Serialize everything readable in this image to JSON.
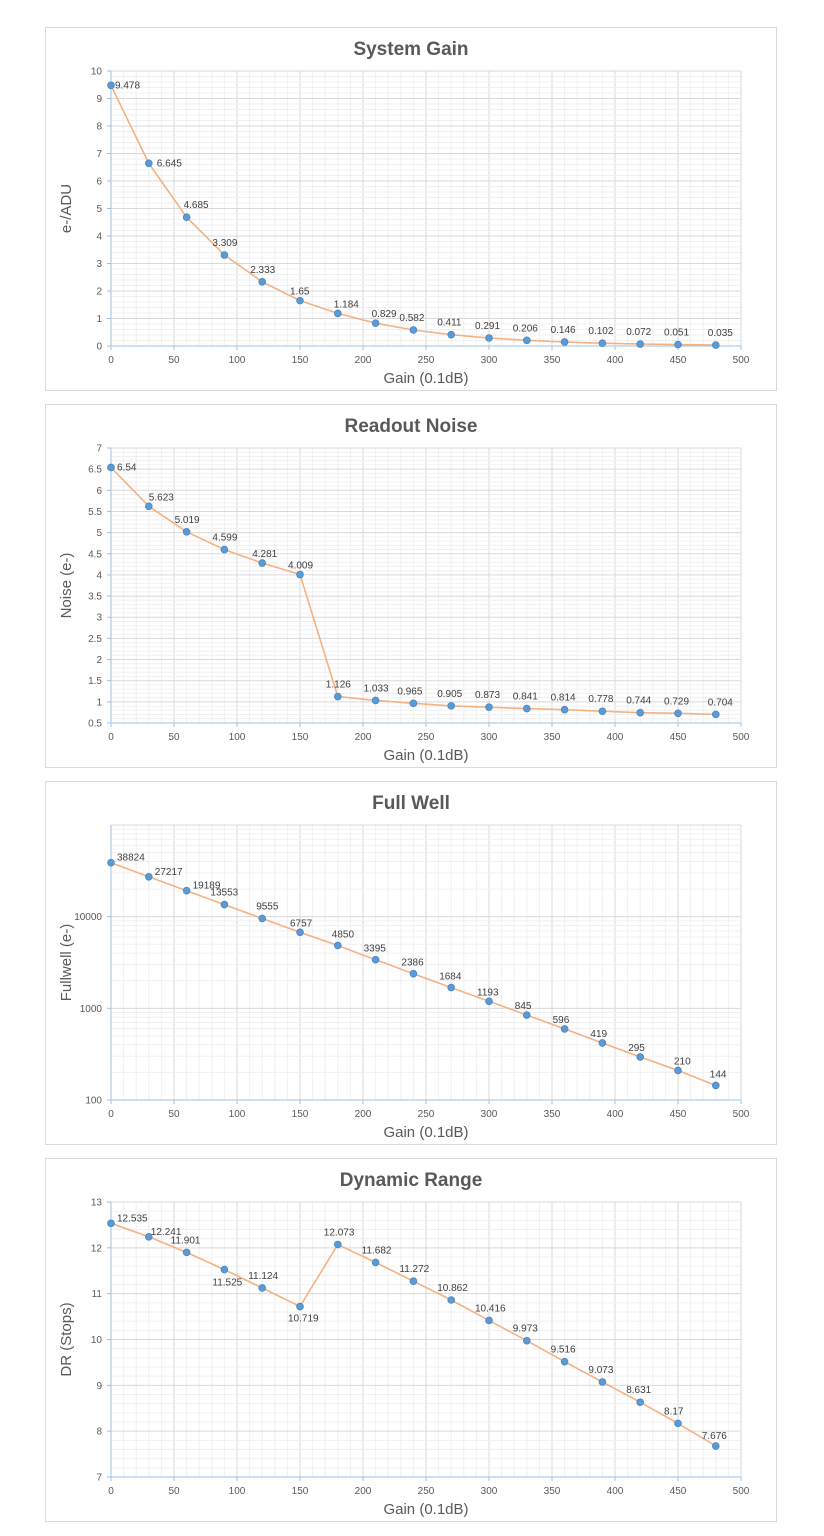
{
  "chart_data": [
    {
      "type": "line",
      "title": "System Gain",
      "xlabel": "Gain (0.1dB)",
      "ylabel": "e-/ADU",
      "xlim": [
        0,
        500
      ],
      "ylim": [
        0,
        10
      ],
      "x_ticks": [
        "0",
        "50",
        "100",
        "150",
        "200",
        "250",
        "300",
        "350",
        "400",
        "450",
        "500"
      ],
      "y_ticks": [
        "0",
        "1",
        "2",
        "3",
        "4",
        "5",
        "6",
        "7",
        "8",
        "9",
        "10"
      ],
      "y_scale": "linear",
      "grid": true,
      "x": [
        0,
        30,
        60,
        90,
        120,
        150,
        180,
        210,
        240,
        270,
        300,
        330,
        360,
        390,
        420,
        450,
        480
      ],
      "values": [
        9.478,
        6.645,
        4.685,
        3.309,
        2.333,
        1.65,
        1.184,
        0.829,
        0.582,
        0.411,
        0.291,
        0.206,
        0.146,
        0.102,
        0.072,
        0.051,
        0.035
      ],
      "labels": [
        "9.478",
        "6.645",
        "4.685",
        "3.309",
        "2.333",
        "1.65",
        "1.184",
        "0.829",
        "0.582",
        "0.411",
        "0.291",
        "0.206",
        "0.146",
        "0.102",
        "0.072",
        "0.051",
        "0.035"
      ],
      "line_color": "#f4b183",
      "marker_color": "#5b9bd5"
    },
    {
      "type": "line",
      "title": "Readout Noise",
      "xlabel": "Gain (0.1dB)",
      "ylabel": "Noise (e-)",
      "xlim": [
        0,
        500
      ],
      "ylim": [
        0.5,
        7
      ],
      "x_ticks": [
        "0",
        "50",
        "100",
        "150",
        "200",
        "250",
        "300",
        "350",
        "400",
        "450",
        "500"
      ],
      "y_ticks": [
        "0.5",
        "1",
        "1.5",
        "2",
        "2.5",
        "3",
        "3.5",
        "4",
        "4.5",
        "5",
        "5.5",
        "6",
        "6.5",
        "7"
      ],
      "y_scale": "linear",
      "grid": true,
      "x": [
        0,
        30,
        60,
        90,
        120,
        150,
        180,
        210,
        240,
        270,
        300,
        330,
        360,
        390,
        420,
        450,
        480
      ],
      "values": [
        6.54,
        5.623,
        5.019,
        4.599,
        4.281,
        4.009,
        1.126,
        1.033,
        0.965,
        0.905,
        0.873,
        0.841,
        0.814,
        0.778,
        0.744,
        0.729,
        0.704
      ],
      "labels": [
        "6.54",
        "5.623",
        "5.019",
        "4.599",
        "4.281",
        "4.009",
        "1.126",
        "1.033",
        "0.965",
        "0.905",
        "0.873",
        "0.841",
        "0.814",
        "0.778",
        "0.744",
        "0.729",
        "0.704"
      ],
      "line_color": "#f4b183",
      "marker_color": "#5b9bd5"
    },
    {
      "type": "line",
      "title": "Full Well",
      "xlabel": "Gain (0.1dB)",
      "ylabel": "Fullwell (e-)",
      "xlim": [
        0,
        500
      ],
      "ylim": [
        100,
        100000
      ],
      "x_ticks": [
        "0",
        "50",
        "100",
        "150",
        "200",
        "250",
        "300",
        "350",
        "400",
        "450",
        "500"
      ],
      "y_ticks": [
        "100",
        "1000",
        "10000"
      ],
      "y_scale": "log",
      "grid": true,
      "x": [
        0,
        30,
        60,
        90,
        120,
        150,
        180,
        210,
        240,
        270,
        300,
        330,
        360,
        390,
        420,
        450,
        480
      ],
      "values": [
        38824,
        27217,
        19189,
        13553,
        9555,
        6757,
        4850,
        3395,
        2386,
        1684,
        1193,
        845,
        596,
        419,
        295,
        210,
        144
      ],
      "labels": [
        "38824",
        "27217",
        "19189",
        "13553",
        "9555",
        "6757",
        "4850",
        "3395",
        "2386",
        "1684",
        "1193",
        "845",
        "596",
        "419",
        "295",
        "210",
        "144"
      ],
      "line_color": "#f4b183",
      "marker_color": "#5b9bd5"
    },
    {
      "type": "line",
      "title": "Dynamic Range",
      "xlabel": "Gain (0.1dB)",
      "ylabel": "DR (Stops)",
      "xlim": [
        0,
        500
      ],
      "ylim": [
        7,
        13
      ],
      "x_ticks": [
        "0",
        "50",
        "100",
        "150",
        "200",
        "250",
        "300",
        "350",
        "400",
        "450",
        "500"
      ],
      "y_ticks": [
        "7",
        "8",
        "9",
        "10",
        "11",
        "12",
        "13"
      ],
      "y_scale": "linear",
      "grid": true,
      "x": [
        0,
        30,
        60,
        90,
        120,
        150,
        180,
        210,
        240,
        270,
        300,
        330,
        360,
        390,
        420,
        450,
        480
      ],
      "values": [
        12.535,
        12.241,
        11.901,
        11.525,
        11.124,
        10.719,
        12.073,
        11.682,
        11.272,
        10.862,
        10.416,
        9.973,
        9.516,
        9.073,
        8.631,
        8.17,
        7.676
      ],
      "labels": [
        "12.535",
        "12.241",
        "11.901",
        "11.525",
        "11.124",
        "10.719",
        "12.073",
        "11.682",
        "11.272",
        "10.862",
        "10.416",
        "9.973",
        "9.516",
        "9.073",
        "8.631",
        "8.17",
        "7.676"
      ],
      "line_color": "#f4b183",
      "marker_color": "#5b9bd5"
    }
  ]
}
